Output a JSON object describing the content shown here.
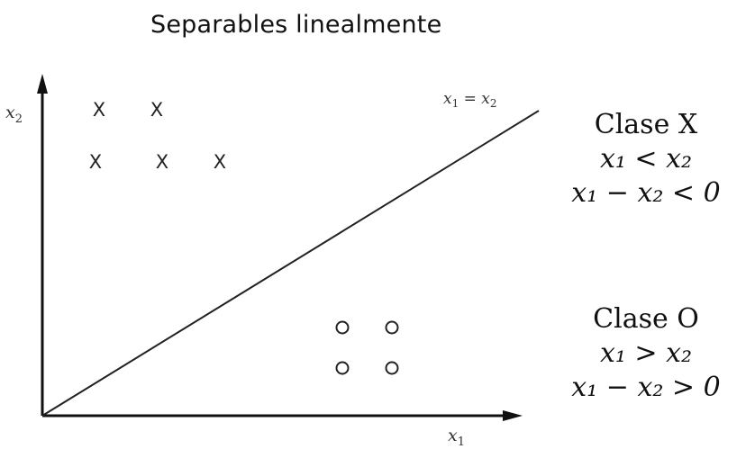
{
  "title": "Separables linealmente",
  "axes": {
    "x_label": "x",
    "x_sub": "1",
    "y_label": "x",
    "y_sub": "2"
  },
  "boundary": {
    "label_a": "x",
    "label_a_sub": "1",
    "label_eq": " = ",
    "label_b": "x",
    "label_b_sub": "2"
  },
  "markers": {
    "x_symbol": "X",
    "o_symbol": "O"
  },
  "classes": [
    {
      "name": "Clase X",
      "condition1": "x₁ < x₂",
      "condition2": "x₁ − x₂ < 0"
    },
    {
      "name": "Clase O",
      "condition1": "x₁ > x₂",
      "condition2": "x₁ − x₂ > 0"
    }
  ]
}
